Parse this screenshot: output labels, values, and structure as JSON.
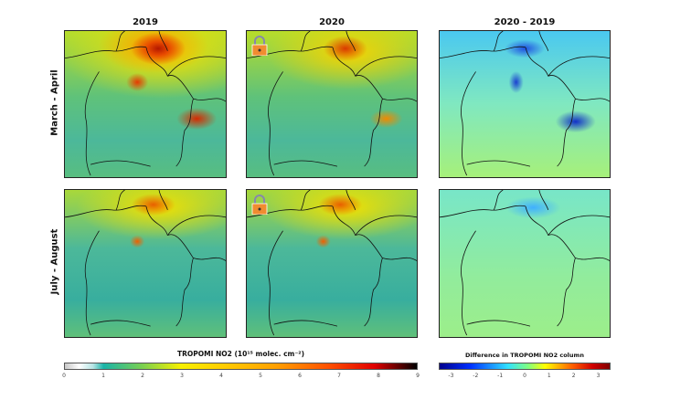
{
  "columns": [
    "2019",
    "2020",
    "2020 - 2019"
  ],
  "rows": [
    "March - April",
    "July - August"
  ],
  "lockdown_icon": "padlock-icon",
  "colorbar_no2": {
    "label": "TROPOMI NO2 (10¹⁵ molec. cm⁻²)",
    "ticks": [
      "0",
      "1",
      "2",
      "3",
      "4",
      "5",
      "6",
      "7",
      "8",
      "9"
    ],
    "range": [
      0,
      9
    ]
  },
  "colorbar_diff": {
    "label": "Difference in TROPOMI NO2 column",
    "ticks": [
      "-3",
      "-2",
      "-1",
      "0",
      "1",
      "2",
      "3"
    ],
    "range": [
      -3.5,
      3.5
    ]
  },
  "colors": {
    "lock": "#f08c30",
    "border": "#222222"
  }
}
